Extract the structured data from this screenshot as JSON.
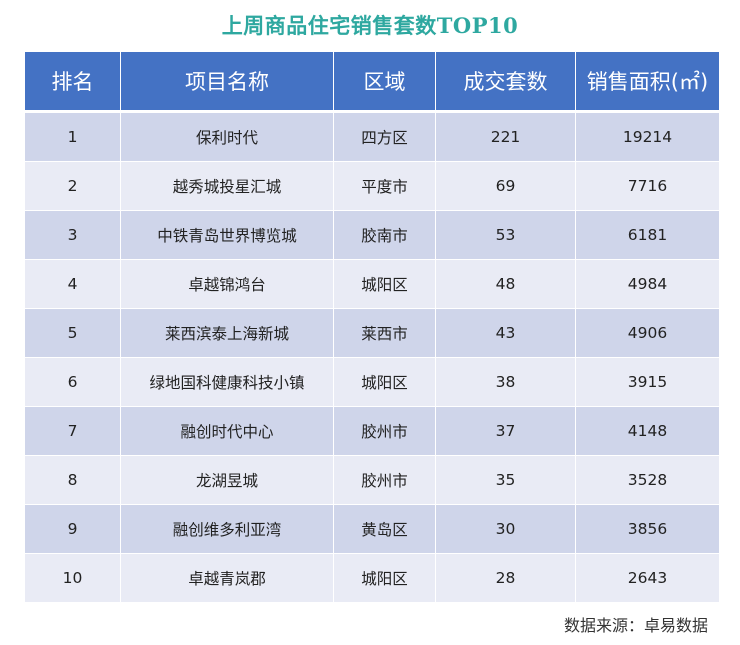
{
  "chart_data": {
    "type": "table",
    "title": "上周商品住宅销售套数TOP10",
    "columns": [
      "排名",
      "项目名称",
      "区域",
      "成交套数",
      "销售面积(㎡)"
    ],
    "rows": [
      [
        "1",
        "保利时代",
        "四方区",
        "221",
        "19214"
      ],
      [
        "2",
        "越秀城投星汇城",
        "平度市",
        "69",
        "7716"
      ],
      [
        "3",
        "中铁青岛世界博览城",
        "胶南市",
        "53",
        "6181"
      ],
      [
        "4",
        "卓越锦鸿台",
        "城阳区",
        "48",
        "4984"
      ],
      [
        "5",
        "莱西滨泰上海新城",
        "莱西市",
        "43",
        "4906"
      ],
      [
        "6",
        "绿地国科健康科技小镇",
        "城阳区",
        "38",
        "3915"
      ],
      [
        "7",
        "融创时代中心",
        "胶州市",
        "37",
        "4148"
      ],
      [
        "8",
        "龙湖昱城",
        "胶州市",
        "35",
        "3528"
      ],
      [
        "9",
        "融创维多利亚湾",
        "黄岛区",
        "30",
        "3856"
      ],
      [
        "10",
        "卓越青岚郡",
        "城阳区",
        "28",
        "2643"
      ]
    ],
    "source": "数据来源：卓易数据"
  },
  "colors": {
    "title": "#2ea8a0",
    "header_bg": "#4472c4",
    "row_odd": "#cfd5ea",
    "row_even": "#e9ebf5"
  }
}
